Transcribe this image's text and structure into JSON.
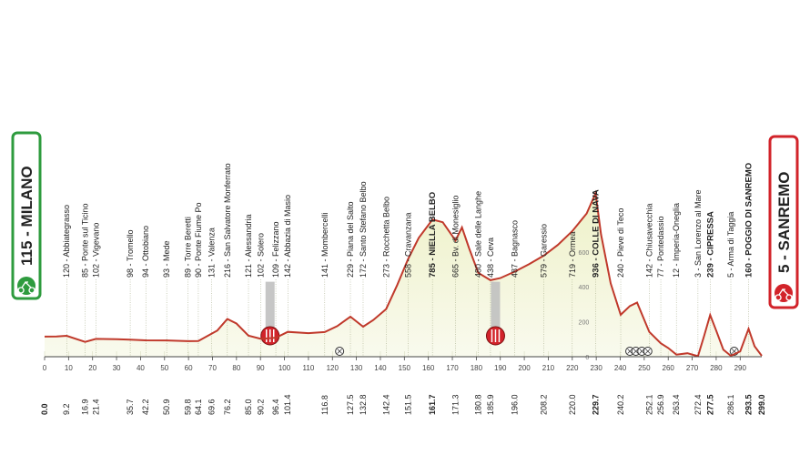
{
  "chart_data": {
    "type": "area",
    "title": "",
    "xlabel": "",
    "ylabel": "",
    "ylim": [
      0,
      1000
    ],
    "xlim": [
      0,
      299
    ],
    "x_ticks": [
      0,
      10,
      20,
      30,
      40,
      50,
      60,
      70,
      80,
      90,
      100,
      110,
      120,
      130,
      140,
      150,
      160,
      170,
      180,
      190,
      200,
      210,
      220,
      230,
      240,
      250,
      260,
      270,
      280,
      290
    ],
    "y_ticks": [
      0,
      200,
      400,
      600
    ],
    "start": {
      "label": "115 - MILANO",
      "km": 0,
      "color": "#2e9b3e"
    },
    "finish": {
      "label": "5 - SANREMO",
      "km": 299,
      "color": "#d2232a"
    },
    "locations": [
      {
        "label": "120 - Abbiategrasso",
        "km": 9.2,
        "alt": 120
      },
      {
        "label": "85 - Ponte sul Ticino",
        "km": 16.9,
        "alt": 85
      },
      {
        "label": "102 - Vigevano",
        "km": 21.4,
        "alt": 102
      },
      {
        "label": "98 - Tromello",
        "km": 35.7,
        "alt": 98
      },
      {
        "label": "94 - Ottobiano",
        "km": 42.2,
        "alt": 94
      },
      {
        "label": "93 - Mede",
        "km": 50.9,
        "alt": 93
      },
      {
        "label": "89 - Torre Beretti",
        "km": 59.8,
        "alt": 89
      },
      {
        "label": "90 - Ponte Fiume Po",
        "km": 64.1,
        "alt": 90
      },
      {
        "label": "131 - Valenza",
        "km": 69.6,
        "alt": 131
      },
      {
        "label": "216 - San Salvatore Monferrato",
        "km": 76.2,
        "alt": 216
      },
      {
        "label": "121 - Alessandria",
        "km": 85.0,
        "alt": 121
      },
      {
        "label": "102 - Solero",
        "km": 90.2,
        "alt": 102
      },
      {
        "label": "109 - Felizzano",
        "km": 96.4,
        "alt": 109
      },
      {
        "label": "142 - Abbazia di Masio",
        "km": 101.4,
        "alt": 142
      },
      {
        "label": "141 - Mombercelli",
        "km": 116.8,
        "alt": 141
      },
      {
        "label": "229 - Piana del Salto",
        "km": 127.5,
        "alt": 229
      },
      {
        "label": "172 - Santo Stefano Belbo",
        "km": 132.8,
        "alt": 172
      },
      {
        "label": "273 - Rocchetta Belbo",
        "km": 142.4,
        "alt": 273
      },
      {
        "label": "558 - Cravanzana",
        "km": 151.5,
        "alt": 558
      },
      {
        "label": "785 - NIELLA BELBO",
        "km": 161.7,
        "alt": 785,
        "bold": true
      },
      {
        "label": "665 - Bv. di Monesiglio",
        "km": 171.3,
        "alt": 665
      },
      {
        "label": "480 - Sale delle Langhe",
        "km": 180.8,
        "alt": 480
      },
      {
        "label": "438 - Ceva",
        "km": 185.9,
        "alt": 438
      },
      {
        "label": "487 - Bagnasco",
        "km": 196.0,
        "alt": 487
      },
      {
        "label": "579 - Garessio",
        "km": 208.2,
        "alt": 579
      },
      {
        "label": "719 - Ormea",
        "km": 220.0,
        "alt": 719
      },
      {
        "label": "936 - COLLE DI NAVA",
        "km": 229.7,
        "alt": 936,
        "bold": true
      },
      {
        "label": "240 - Pieve di Teco",
        "km": 240.2,
        "alt": 240
      },
      {
        "label": "142 - Chiusavecchia",
        "km": 252.1,
        "alt": 142
      },
      {
        "label": "77 - Pontedassio",
        "km": 256.9,
        "alt": 77
      },
      {
        "label": "12 - Imperia-Oneglia",
        "km": 263.4,
        "alt": 12
      },
      {
        "label": "3 - San Lorenzo al Mare",
        "km": 272.4,
        "alt": 3
      },
      {
        "label": "239 - CIPRESSA",
        "km": 277.5,
        "alt": 239,
        "bold": true
      },
      {
        "label": "5 - Arma di Taggia",
        "km": 286.1,
        "alt": 5
      },
      {
        "label": "160 - POGGIO DI SANREMO",
        "km": 293.5,
        "alt": 160,
        "bold": true
      }
    ],
    "bottom_km": [
      {
        "text": "0.0",
        "km": 0,
        "bold": true
      },
      {
        "text": "9.2",
        "km": 9.2
      },
      {
        "text": "16.9",
        "km": 16.9
      },
      {
        "text": "21.4",
        "km": 21.4
      },
      {
        "text": "35.7",
        "km": 35.7
      },
      {
        "text": "42.2",
        "km": 42.2
      },
      {
        "text": "50.9",
        "km": 50.9
      },
      {
        "text": "59.8",
        "km": 59.8
      },
      {
        "text": "64.1",
        "km": 64.1
      },
      {
        "text": "69.6",
        "km": 69.6
      },
      {
        "text": "76.2",
        "km": 76.2
      },
      {
        "text": "85.0",
        "km": 85.0
      },
      {
        "text": "90.2",
        "km": 90.2
      },
      {
        "text": "96.4",
        "km": 96.4
      },
      {
        "text": "101.4",
        "km": 101.4
      },
      {
        "text": "116.8",
        "km": 116.8
      },
      {
        "text": "127.5",
        "km": 127.5
      },
      {
        "text": "132.8",
        "km": 132.8
      },
      {
        "text": "142.4",
        "km": 142.4
      },
      {
        "text": "151.5",
        "km": 151.5
      },
      {
        "text": "161.7",
        "km": 161.7,
        "bold": true
      },
      {
        "text": "171.3",
        "km": 171.3
      },
      {
        "text": "180.8",
        "km": 180.8
      },
      {
        "text": "185.9",
        "km": 185.9
      },
      {
        "text": "196.0",
        "km": 196.0
      },
      {
        "text": "208.2",
        "km": 208.2
      },
      {
        "text": "220.0",
        "km": 220.0
      },
      {
        "text": "229.7",
        "km": 229.7,
        "bold": true
      },
      {
        "text": "240.2",
        "km": 240.2
      },
      {
        "text": "252.1",
        "km": 252.1
      },
      {
        "text": "256.9",
        "km": 256.9
      },
      {
        "text": "263.4",
        "km": 263.4
      },
      {
        "text": "272.4",
        "km": 272.4
      },
      {
        "text": "277.5",
        "km": 277.5,
        "bold": true
      },
      {
        "text": "286.1",
        "km": 286.1
      },
      {
        "text": "293.5",
        "km": 293.5,
        "bold": true
      },
      {
        "text": "299.0",
        "km": 299.0,
        "bold": true
      }
    ],
    "profile": [
      [
        0,
        115
      ],
      [
        5,
        116
      ],
      [
        9.2,
        120
      ],
      [
        16.9,
        85
      ],
      [
        21.4,
        102
      ],
      [
        30,
        100
      ],
      [
        35.7,
        98
      ],
      [
        42.2,
        94
      ],
      [
        50.9,
        93
      ],
      [
        59.8,
        89
      ],
      [
        64.1,
        90
      ],
      [
        69.6,
        131
      ],
      [
        72,
        150
      ],
      [
        76.2,
        216
      ],
      [
        80,
        190
      ],
      [
        85.0,
        121
      ],
      [
        90.2,
        102
      ],
      [
        96.4,
        109
      ],
      [
        101.4,
        142
      ],
      [
        110,
        135
      ],
      [
        116.8,
        141
      ],
      [
        122,
        175
      ],
      [
        127.5,
        229
      ],
      [
        132.8,
        172
      ],
      [
        137,
        210
      ],
      [
        142.4,
        273
      ],
      [
        147,
        410
      ],
      [
        151.5,
        558
      ],
      [
        156,
        680
      ],
      [
        161.7,
        785
      ],
      [
        166,
        770
      ],
      [
        171.3,
        665
      ],
      [
        174,
        740
      ],
      [
        177,
        620
      ],
      [
        180.8,
        480
      ],
      [
        185.9,
        438
      ],
      [
        190,
        450
      ],
      [
        196.0,
        487
      ],
      [
        202,
        530
      ],
      [
        208.2,
        579
      ],
      [
        214,
        640
      ],
      [
        220.0,
        719
      ],
      [
        226,
        820
      ],
      [
        229.7,
        936
      ],
      [
        232,
        700
      ],
      [
        236,
        420
      ],
      [
        240.2,
        240
      ],
      [
        244,
        290
      ],
      [
        247,
        310
      ],
      [
        252.1,
        142
      ],
      [
        256.9,
        77
      ],
      [
        260,
        50
      ],
      [
        263.4,
        12
      ],
      [
        268,
        20
      ],
      [
        272.4,
        3
      ],
      [
        275,
        120
      ],
      [
        277.5,
        239
      ],
      [
        280,
        150
      ],
      [
        283,
        40
      ],
      [
        286.1,
        5
      ],
      [
        290,
        30
      ],
      [
        293.5,
        160
      ],
      [
        296,
        60
      ],
      [
        299,
        5
      ]
    ],
    "markers": [
      {
        "type": "feed-zone",
        "km": 94
      },
      {
        "type": "feed-zone",
        "km": 188
      },
      {
        "type": "railway-crossing",
        "km": 123
      },
      {
        "type": "railway-crossing",
        "km": 244
      },
      {
        "type": "railway-crossing",
        "km": 246.5
      },
      {
        "type": "railway-crossing",
        "km": 249
      },
      {
        "type": "railway-crossing",
        "km": 251.5
      },
      {
        "type": "railway-crossing",
        "km": 287.5
      }
    ],
    "colors": {
      "profile_line": "#c0392b",
      "fill": "#f3f5dd",
      "grid": "#d8dcc0",
      "axis": "#444444",
      "feed_zone": "#c0c0c0"
    }
  }
}
